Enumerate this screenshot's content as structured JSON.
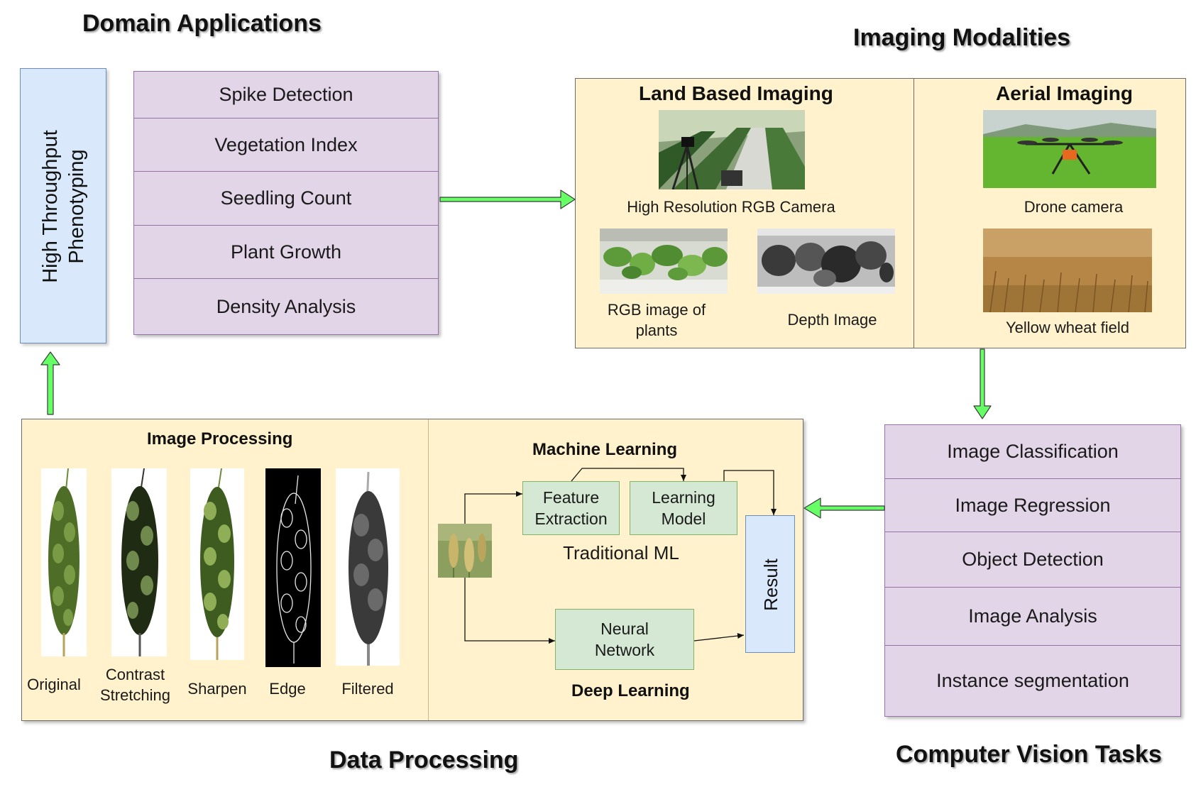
{
  "sections": {
    "domain_applications": "Domain Applications",
    "imaging_modalities": "Imaging Modalities",
    "data_processing": "Data Processing",
    "computer_vision_tasks": "Computer Vision Tasks"
  },
  "phenotyping": {
    "line1": "High Throughput",
    "line2": "Phenotyping"
  },
  "domain_items": [
    "Spike Detection",
    "Vegetation Index",
    "Seedling Count",
    "Plant Growth",
    "Density Analysis"
  ],
  "imaging": {
    "land": {
      "title": "Land Based Imaging",
      "camera_caption": "High Resolution RGB Camera",
      "rgb_caption_line1": "RGB image of",
      "rgb_caption_line2": "plants",
      "depth_caption": "Depth Image"
    },
    "aerial": {
      "title": "Aerial Imaging",
      "drone_caption": "Drone camera",
      "field_caption": "Yellow wheat field"
    }
  },
  "cv_tasks": [
    "Image Classification",
    "Image Regression",
    "Object Detection",
    "Image Analysis",
    "Instance segmentation"
  ],
  "image_processing": {
    "title": "Image Processing",
    "labels": {
      "original": "Original",
      "contrast_line1": "Contrast",
      "contrast_line2": "Stretching",
      "sharpen": "Sharpen",
      "edge": "Edge",
      "filtered": "Filtered"
    }
  },
  "machine_learning": {
    "title": "Machine Learning",
    "feature_line1": "Feature",
    "feature_line2": "Extraction",
    "learning_line1": "Learning",
    "learning_line2": "Model",
    "traditional": "Traditional ML",
    "neural_line1": "Neural",
    "neural_line2": "Network",
    "deep": "Deep Learning",
    "result": "Result"
  },
  "colors": {
    "purple_fill": "#e1d5e7",
    "purple_border": "#9673a6",
    "yellow_fill": "#fff2cc",
    "green_fill": "#d5e8d4",
    "green_border": "#82b366",
    "blue_fill": "#dae8fc",
    "blue_border": "#6c8ebf",
    "arrow_green": "#66ff66"
  },
  "icons": [
    "camera-photo-icon",
    "plants-photo-icon",
    "depth-image-icon",
    "drone-photo-icon",
    "wheat-field-icon",
    "wheat-spike-icon"
  ]
}
